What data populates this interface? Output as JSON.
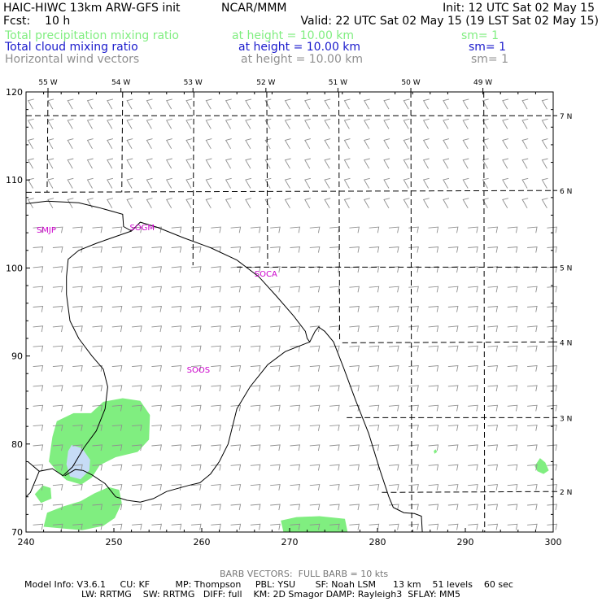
{
  "header": {
    "model": "HAIC-HIWC 13km ARW-GFS init",
    "center": "NCAR/MMM",
    "init": "Init: 12 UTC Sat 02 May 15",
    "fcst": "Fcst:    10 h",
    "valid": "Valid: 22 UTC Sat 02 May 15 (19 LST Sat 02 May 15)"
  },
  "fields": [
    {
      "name": "Total precipitation mixing ratio",
      "height": "at height = 10.00 km",
      "smooth": "sm= 1",
      "color": "#80ee80"
    },
    {
      "name": "Total cloud mixing ratio",
      "height": "at height = 10.00 km",
      "smooth": "sm= 1",
      "color": "#1a1acc"
    },
    {
      "name": "Horizontal wind vectors",
      "height": "at height = 10.00 km",
      "smooth": "sm= 1",
      "color": "#909090"
    }
  ],
  "footer": {
    "barb_note": "BARB VECTORS:  FULL BARB = 10 kts",
    "line1": "Model Info: V3.6.1     CU: KF         MP: Thompson     PBL: YSU       SF: Noah LSM      13 km    51 levels    60 sec",
    "line2": "LW: RRTMG    SW: RRTMG   DIFF: full    KM: 2D Smagor DAMP: Rayleigh3  SFLAY: MM5"
  },
  "chart_data": {
    "type": "map",
    "x_ticks": [
      240,
      250,
      260,
      270,
      280,
      290,
      300
    ],
    "y_ticks": [
      70,
      80,
      90,
      100,
      110,
      120
    ],
    "xlim": [
      240,
      300
    ],
    "ylim": [
      70,
      120
    ],
    "lon_labels": [
      {
        "label": "55 W",
        "x": 242.5
      },
      {
        "label": "54 W",
        "x": 250.8
      },
      {
        "label": "53 W",
        "x": 259.0
      },
      {
        "label": "52 W",
        "x": 267.3
      },
      {
        "label": "51 W",
        "x": 275.5
      },
      {
        "label": "50 W",
        "x": 283.8
      },
      {
        "label": "49 W",
        "x": 292.0
      }
    ],
    "lat_labels": [
      {
        "label": "7 N",
        "y": 117.3
      },
      {
        "label": "6 N",
        "y": 108.8
      },
      {
        "label": "5 N",
        "y": 100.1
      },
      {
        "label": "4 N",
        "y": 91.6
      },
      {
        "label": "3 N",
        "y": 83.0
      },
      {
        "label": "2 N",
        "y": 74.6
      }
    ],
    "lon_lines": [
      [
        [
          242.5,
          120
        ],
        [
          242.4,
          108.6
        ]
      ],
      [
        [
          251.0,
          120
        ],
        [
          250.9,
          108.6
        ]
      ],
      [
        [
          259.1,
          120
        ],
        [
          259.0,
          100.3
        ]
      ],
      [
        [
          267.4,
          120
        ],
        [
          267.5,
          100.3
        ]
      ],
      [
        [
          275.6,
          120
        ],
        [
          275.7,
          91.6
        ]
      ],
      [
        [
          283.8,
          120
        ],
        [
          283.9,
          70
        ]
      ],
      [
        [
          292.1,
          120
        ],
        [
          292.2,
          70
        ]
      ]
    ],
    "lat_lines": [
      [
        [
          240,
          117.3
        ],
        [
          300,
          117.3
        ]
      ],
      [
        [
          240,
          108.6
        ],
        [
          300,
          108.8
        ]
      ],
      [
        [
          264.0,
          100.1
        ],
        [
          300,
          100.1
        ]
      ],
      [
        [
          276.0,
          91.5
        ],
        [
          300,
          91.6
        ]
      ],
      [
        [
          276.5,
          83.0
        ],
        [
          300,
          83.0
        ]
      ],
      [
        [
          280.5,
          74.5
        ],
        [
          300,
          74.6
        ]
      ]
    ],
    "station_labels": [
      {
        "label": "SMJP",
        "x": 241.2,
        "y": 104.0
      },
      {
        "label": "SOGM",
        "x": 251.8,
        "y": 104.3
      },
      {
        "label": "SOCA",
        "x": 266.0,
        "y": 99.0
      },
      {
        "label": "SOOS",
        "x": 258.3,
        "y": 88.1
      }
    ],
    "coastlines": [
      [
        [
          240,
          107.3
        ],
        [
          242.4,
          107.6
        ],
        [
          246.0,
          107.4
        ],
        [
          248.5,
          106.8
        ],
        [
          251.0,
          106.1
        ],
        [
          251.1,
          104.7
        ],
        [
          252.0,
          104.2
        ],
        [
          253.0,
          105.2
        ],
        [
          255.0,
          104.6
        ],
        [
          258.0,
          103.4
        ],
        [
          261.0,
          102.3
        ],
        [
          264.0,
          100.9
        ],
        [
          266.5,
          99.0
        ],
        [
          268.5,
          96.8
        ],
        [
          270.5,
          94.5
        ],
        [
          271.8,
          92.8
        ],
        [
          272.0,
          92.0
        ],
        [
          272.3,
          91.6
        ],
        [
          272.9,
          92.8
        ],
        [
          273.3,
          93.3
        ],
        [
          274.0,
          92.8
        ],
        [
          275.0,
          91.6
        ],
        [
          276.2,
          88.5
        ],
        [
          277.5,
          85.0
        ],
        [
          279.0,
          81.2
        ],
        [
          280.3,
          77.0
        ],
        [
          281.3,
          74.0
        ],
        [
          281.8,
          72.8
        ],
        [
          283.0,
          72.2
        ],
        [
          284.2,
          72.1
        ],
        [
          285.0,
          71.8
        ],
        [
          285.1,
          70.0
        ]
      ],
      [
        [
          252.0,
          104.2
        ],
        [
          250.0,
          103.5
        ],
        [
          248.0,
          102.8
        ],
        [
          246.0,
          102.0
        ],
        [
          244.8,
          101.0
        ],
        [
          244.6,
          99.0
        ],
        [
          244.6,
          97.0
        ],
        [
          245.0,
          94.0
        ],
        [
          246.0,
          92.0
        ],
        [
          247.5,
          90.0
        ],
        [
          248.8,
          88.5
        ],
        [
          249.3,
          86.5
        ],
        [
          249.0,
          84.0
        ],
        [
          248.0,
          81.5
        ],
        [
          246.6,
          79.6
        ],
        [
          245.3,
          77.4
        ],
        [
          244.2,
          76.4
        ],
        [
          243.0,
          77.2
        ],
        [
          241.5,
          76.9
        ],
        [
          240.2,
          78.0
        ]
      ],
      [
        [
          272.3,
          91.6
        ],
        [
          269.5,
          90.5
        ],
        [
          267.5,
          89.0
        ],
        [
          265.5,
          86.5
        ],
        [
          264.0,
          84.0
        ],
        [
          263.0,
          80.0
        ],
        [
          262.0,
          78.0
        ],
        [
          261.0,
          76.6
        ],
        [
          259.8,
          75.6
        ],
        [
          258.5,
          75.3
        ],
        [
          256.0,
          74.6
        ],
        [
          254.5,
          73.8
        ],
        [
          253.0,
          73.4
        ],
        [
          251.5,
          73.6
        ],
        [
          250.2,
          74.0
        ],
        [
          249.0,
          75.5
        ],
        [
          247.5,
          76.5
        ],
        [
          246.5,
          77.0
        ],
        [
          245.6,
          77.1
        ],
        [
          244.4,
          76.4
        ]
      ],
      [
        [
          241.5,
          76.9
        ],
        [
          240.5,
          74.5
        ],
        [
          240.0,
          74.0
        ]
      ]
    ],
    "precip_areas": [
      [
        [
          243.0,
          80.8
        ],
        [
          243.5,
          82.6
        ],
        [
          245.4,
          83.5
        ],
        [
          247.4,
          83.5
        ],
        [
          248.8,
          84.8
        ],
        [
          251.0,
          85.2
        ],
        [
          253.0,
          84.9
        ],
        [
          254.1,
          83.3
        ],
        [
          254.0,
          80.5
        ],
        [
          252.7,
          79.1
        ],
        [
          250.2,
          78.5
        ],
        [
          248.4,
          77.6
        ],
        [
          247.5,
          76.2
        ],
        [
          246.3,
          75.4
        ],
        [
          244.6,
          75.9
        ],
        [
          243.6,
          76.8
        ],
        [
          242.6,
          78.0
        ]
      ],
      [
        [
          242.0,
          70.6
        ],
        [
          242.4,
          72.2
        ],
        [
          244.2,
          72.9
        ],
        [
          246.2,
          73.5
        ],
        [
          247.8,
          74.4
        ],
        [
          249.4,
          75.1
        ],
        [
          250.6,
          74.8
        ],
        [
          250.9,
          73.3
        ],
        [
          250.1,
          71.6
        ],
        [
          248.8,
          70.7
        ],
        [
          246.4,
          70.2
        ]
      ],
      [
        [
          241.0,
          74.3
        ],
        [
          241.9,
          75.3
        ],
        [
          242.8,
          75.0
        ],
        [
          242.9,
          73.8
        ],
        [
          241.7,
          73.3
        ]
      ],
      [
        [
          269.0,
          71.3
        ],
        [
          270.8,
          71.7
        ],
        [
          273.4,
          71.8
        ],
        [
          276.3,
          71.5
        ],
        [
          276.6,
          70.0
        ],
        [
          269.3,
          70.0
        ]
      ],
      [
        [
          297.9,
          77.5
        ],
        [
          298.5,
          78.4
        ],
        [
          299.1,
          77.9
        ],
        [
          299.5,
          77.0
        ],
        [
          298.9,
          76.6
        ],
        [
          298.2,
          76.9
        ]
      ],
      [
        [
          286.4,
          79.2
        ],
        [
          286.6,
          79.4
        ],
        [
          286.8,
          79.1
        ],
        [
          286.5,
          78.9
        ]
      ]
    ],
    "cloud_areas": [
      [
        [
          245.2,
          79.9
        ],
        [
          246.4,
          79.5
        ],
        [
          247.3,
          78.2
        ],
        [
          247.2,
          77.0
        ],
        [
          246.2,
          76.0
        ],
        [
          245.0,
          76.3
        ],
        [
          244.6,
          77.7
        ],
        [
          244.8,
          79.2
        ]
      ]
    ],
    "wind": {
      "units": "kts",
      "speed": 10,
      "direction_deg_north": [
        {
          "y_from": 70,
          "y_to": 106,
          "dir": 85
        },
        {
          "y_from": 106,
          "y_to": 121,
          "dir": 330
        }
      ],
      "spacing": 2.25
    }
  }
}
